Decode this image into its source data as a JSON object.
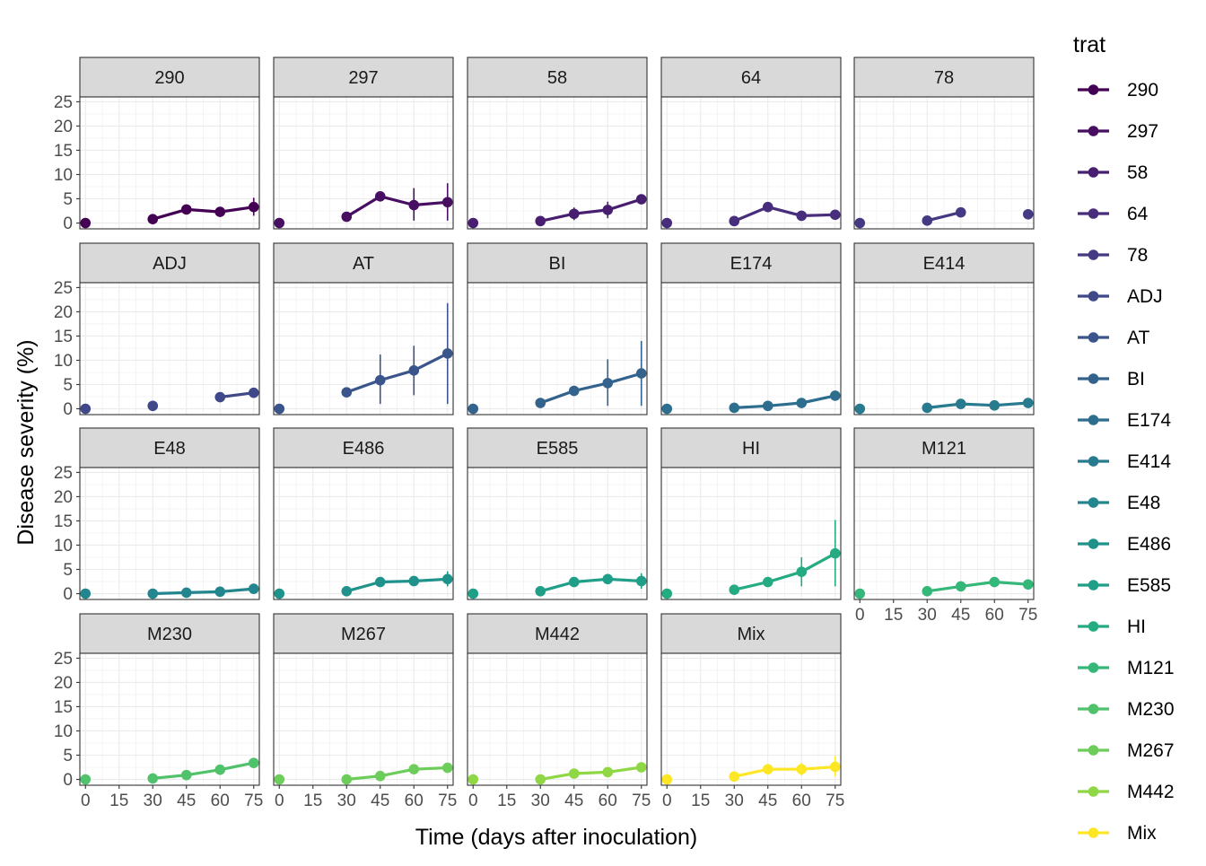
{
  "chart_data": {
    "type": "line",
    "xlabel": "Time (days after inoculation)",
    "ylabel": "Disease severity (%)",
    "x_ticks": [
      0,
      15,
      30,
      45,
      60,
      75
    ],
    "y_ticks": [
      0,
      5,
      10,
      15,
      20,
      25
    ],
    "xlim": [
      -2.5,
      77.5
    ],
    "ylim": [
      -1.2,
      26
    ],
    "grid": true,
    "legend_position": "right",
    "legend": {
      "title": "trat",
      "items": [
        {
          "label": "290",
          "color": "#440154"
        },
        {
          "label": "297",
          "color": "#470e61"
        },
        {
          "label": "58",
          "color": "#481f70"
        },
        {
          "label": "64",
          "color": "#472d7b"
        },
        {
          "label": "78",
          "color": "#443a83"
        },
        {
          "label": "ADJ",
          "color": "#3f4889"
        },
        {
          "label": "AT",
          "color": "#39558c"
        },
        {
          "label": "BI",
          "color": "#33628d"
        },
        {
          "label": "E174",
          "color": "#2d6e8e"
        },
        {
          "label": "E414",
          "color": "#287a8e"
        },
        {
          "label": "E48",
          "color": "#23868e"
        },
        {
          "label": "E486",
          "color": "#1f938b"
        },
        {
          "label": "E585",
          "color": "#1f9f88"
        },
        {
          "label": "HI",
          "color": "#25ab82"
        },
        {
          "label": "M121",
          "color": "#35b779"
        },
        {
          "label": "M230",
          "color": "#4fc26b"
        },
        {
          "label": "M267",
          "color": "#6ccd5a"
        },
        {
          "label": "M442",
          "color": "#8fd744"
        },
        {
          "label": "Mix",
          "color": "#fde725"
        }
      ]
    },
    "panels": [
      {
        "label": "290",
        "color": "#440154",
        "points": [
          {
            "x": 0,
            "y": 0.0
          },
          {
            "x": 30,
            "y": 0.8
          },
          {
            "x": 45,
            "y": 2.8
          },
          {
            "x": 60,
            "y": 2.3
          },
          {
            "x": 75,
            "y": 3.3,
            "lo": 1.5,
            "hi": 5.2
          }
        ]
      },
      {
        "label": "297",
        "color": "#470e61",
        "points": [
          {
            "x": 0,
            "y": 0.0
          },
          {
            "x": 30,
            "y": 1.3
          },
          {
            "x": 45,
            "y": 5.5
          },
          {
            "x": 60,
            "y": 3.7,
            "lo": 0.5,
            "hi": 7.2
          },
          {
            "x": 75,
            "y": 4.3,
            "lo": 0.5,
            "hi": 8.2
          }
        ]
      },
      {
        "label": "58",
        "color": "#481f70",
        "points": [
          {
            "x": 0,
            "y": 0.0
          },
          {
            "x": 30,
            "y": 0.4
          },
          {
            "x": 45,
            "y": 1.9,
            "lo": 0.6,
            "hi": 3.2
          },
          {
            "x": 60,
            "y": 2.7,
            "lo": 1.0,
            "hi": 4.4
          },
          {
            "x": 75,
            "y": 4.9
          }
        ]
      },
      {
        "label": "64",
        "color": "#472d7b",
        "points": [
          {
            "x": 0,
            "y": 0.0
          },
          {
            "x": 30,
            "y": 0.4
          },
          {
            "x": 45,
            "y": 3.3
          },
          {
            "x": 60,
            "y": 1.5
          },
          {
            "x": 75,
            "y": 1.7
          }
        ]
      },
      {
        "label": "78",
        "color": "#443a83",
        "points": [
          {
            "x": 0,
            "y": 0.0
          },
          {
            "x": 30,
            "y": 0.5
          },
          {
            "x": 45,
            "y": 2.2
          },
          {
            "x": 75,
            "y": 1.8
          }
        ]
      },
      {
        "label": "ADJ",
        "color": "#3f4889",
        "points": [
          {
            "x": 0,
            "y": 0.0
          },
          {
            "x": 30,
            "y": 0.6
          },
          {
            "x": 60,
            "y": 2.4
          },
          {
            "x": 75,
            "y": 3.3
          }
        ]
      },
      {
        "label": "AT",
        "color": "#39558c",
        "points": [
          {
            "x": 0,
            "y": 0.0
          },
          {
            "x": 30,
            "y": 3.4
          },
          {
            "x": 45,
            "y": 5.9,
            "lo": 1.0,
            "hi": 11.2
          },
          {
            "x": 60,
            "y": 7.9,
            "lo": 2.8,
            "hi": 13.0
          },
          {
            "x": 75,
            "y": 11.4,
            "lo": 1.0,
            "hi": 21.8
          }
        ]
      },
      {
        "label": "BI",
        "color": "#33628d",
        "points": [
          {
            "x": 0,
            "y": 0.0
          },
          {
            "x": 30,
            "y": 1.2
          },
          {
            "x": 45,
            "y": 3.7
          },
          {
            "x": 60,
            "y": 5.3,
            "lo": 0.6,
            "hi": 10.2
          },
          {
            "x": 75,
            "y": 7.3,
            "lo": 0.6,
            "hi": 14.0
          }
        ]
      },
      {
        "label": "E174",
        "color": "#2d6e8e",
        "points": [
          {
            "x": 0,
            "y": 0.0
          },
          {
            "x": 30,
            "y": 0.2
          },
          {
            "x": 45,
            "y": 0.6
          },
          {
            "x": 60,
            "y": 1.2
          },
          {
            "x": 75,
            "y": 2.7
          }
        ]
      },
      {
        "label": "E414",
        "color": "#287a8e",
        "points": [
          {
            "x": 0,
            "y": 0.0
          },
          {
            "x": 30,
            "y": 0.2
          },
          {
            "x": 45,
            "y": 1.0
          },
          {
            "x": 60,
            "y": 0.7
          },
          {
            "x": 75,
            "y": 1.2
          }
        ]
      },
      {
        "label": "E48",
        "color": "#23868e",
        "points": [
          {
            "x": 0,
            "y": 0.0
          },
          {
            "x": 30,
            "y": 0.0
          },
          {
            "x": 45,
            "y": 0.2
          },
          {
            "x": 60,
            "y": 0.4
          },
          {
            "x": 75,
            "y": 1.0
          }
        ]
      },
      {
        "label": "E486",
        "color": "#1f938b",
        "points": [
          {
            "x": 0,
            "y": 0.0
          },
          {
            "x": 30,
            "y": 0.5
          },
          {
            "x": 45,
            "y": 2.4
          },
          {
            "x": 60,
            "y": 2.6
          },
          {
            "x": 75,
            "y": 3.0,
            "lo": 1.5,
            "hi": 4.6
          }
        ]
      },
      {
        "label": "E585",
        "color": "#1f9f88",
        "points": [
          {
            "x": 0,
            "y": 0.0
          },
          {
            "x": 30,
            "y": 0.5
          },
          {
            "x": 45,
            "y": 2.4
          },
          {
            "x": 60,
            "y": 3.0
          },
          {
            "x": 75,
            "y": 2.6,
            "lo": 1.0,
            "hi": 4.2
          }
        ]
      },
      {
        "label": "HI",
        "color": "#25ab82",
        "points": [
          {
            "x": 0,
            "y": 0.0
          },
          {
            "x": 30,
            "y": 0.8
          },
          {
            "x": 45,
            "y": 2.4
          },
          {
            "x": 60,
            "y": 4.5,
            "lo": 1.5,
            "hi": 7.5
          },
          {
            "x": 75,
            "y": 8.3,
            "lo": 1.5,
            "hi": 15.2
          }
        ]
      },
      {
        "label": "M121",
        "color": "#35b779",
        "points": [
          {
            "x": 0,
            "y": 0.0
          },
          {
            "x": 30,
            "y": 0.5
          },
          {
            "x": 45,
            "y": 1.5
          },
          {
            "x": 60,
            "y": 2.4
          },
          {
            "x": 75,
            "y": 1.9
          }
        ]
      },
      {
        "label": "M230",
        "color": "#4fc26b",
        "points": [
          {
            "x": 0,
            "y": 0.0
          },
          {
            "x": 30,
            "y": 0.2
          },
          {
            "x": 45,
            "y": 0.9
          },
          {
            "x": 60,
            "y": 2.0
          },
          {
            "x": 75,
            "y": 3.4
          }
        ]
      },
      {
        "label": "M267",
        "color": "#6ccd5a",
        "points": [
          {
            "x": 0,
            "y": 0.0
          },
          {
            "x": 30,
            "y": 0.0
          },
          {
            "x": 45,
            "y": 0.7
          },
          {
            "x": 60,
            "y": 2.1
          },
          {
            "x": 75,
            "y": 2.4
          }
        ]
      },
      {
        "label": "M442",
        "color": "#8fd744",
        "points": [
          {
            "x": 0,
            "y": 0.0
          },
          {
            "x": 30,
            "y": 0.0
          },
          {
            "x": 45,
            "y": 1.2
          },
          {
            "x": 60,
            "y": 1.5
          },
          {
            "x": 75,
            "y": 2.5
          }
        ]
      },
      {
        "label": "Mix",
        "color": "#fde725",
        "points": [
          {
            "x": 0,
            "y": 0.0
          },
          {
            "x": 30,
            "y": 0.6
          },
          {
            "x": 45,
            "y": 2.1
          },
          {
            "x": 60,
            "y": 2.1,
            "lo": 0.8,
            "hi": 3.4
          },
          {
            "x": 75,
            "y": 2.6,
            "lo": 0.6,
            "hi": 4.8
          }
        ]
      }
    ]
  }
}
